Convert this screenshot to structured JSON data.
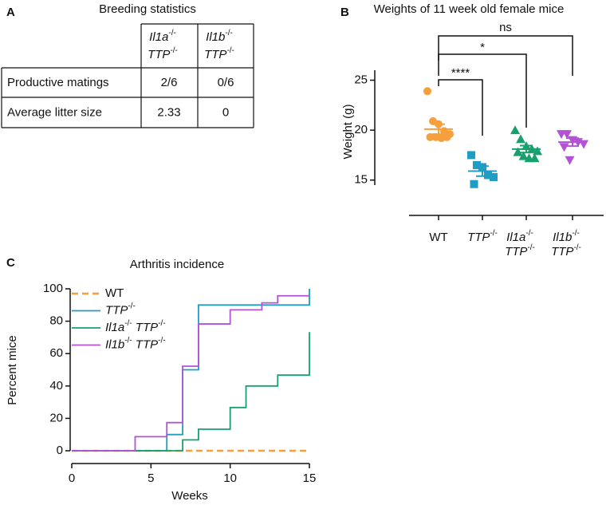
{
  "table": {
    "panel": "A",
    "title": "Breeding statistics",
    "columns": [
      "Il1a-/- TTP-/-",
      "Il1b-/- TTP-/-"
    ],
    "rows": [
      {
        "label": "Productive matings",
        "cells": [
          "2/6",
          "0/6"
        ]
      },
      {
        "label": "Average litter size",
        "cells": [
          "2.33",
          "0"
        ]
      }
    ]
  },
  "chart_data": [
    {
      "type": "dot",
      "panel": "B",
      "title": "Weights of 11 week old female mice",
      "y_label": "Weight (g)",
      "categories": [
        "WT",
        "TTP-/-",
        "Il1a-/- TTP-/-",
        "Il1b-/- TTP-/-"
      ],
      "colors": [
        "#f5a03c",
        "#1f9dc4",
        "#17a06e",
        "#b452d6"
      ],
      "markers": [
        "circle",
        "square",
        "triangle-up",
        "triangle-down"
      ],
      "values": [
        [
          23.9,
          20.9,
          20.6,
          19.9,
          19.6,
          19.3,
          19.3,
          19.2,
          19.3
        ],
        [
          17.5,
          16.5,
          16.3,
          15.5,
          15.3,
          14.6
        ],
        [
          20.0,
          19.1,
          18.4,
          18.1,
          17.9,
          17.8,
          17.4,
          17.2,
          17.2
        ],
        [
          19.6,
          19.6,
          19.0,
          18.8,
          18.6,
          18.3,
          17.0
        ]
      ],
      "means": [
        20.1,
        15.9,
        18.1,
        18.8
      ],
      "sems": [
        0.5,
        0.5,
        0.35,
        0.4
      ],
      "annotations": [
        "****",
        "*",
        "ns"
      ],
      "ylim": [
        14.5,
        26
      ],
      "yticks": [
        15,
        20,
        25
      ]
    },
    {
      "type": "step",
      "panel": "C",
      "title": "Arthritis incidence",
      "x_label": "Weeks",
      "y_label": "Percent mice",
      "series": [
        {
          "name": "WT",
          "color": "#f5a03c",
          "dashed": true,
          "x": [
            0,
            15
          ],
          "values": [
            0,
            0
          ]
        },
        {
          "name": "TTP-/-",
          "color": "#1f9dc4",
          "x": [
            0,
            6,
            7,
            8,
            15
          ],
          "values": [
            0,
            10,
            50,
            90,
            100
          ]
        },
        {
          "name": "Il1a-/- TTP-/-",
          "color": "#17a06e",
          "x": [
            0,
            7,
            8,
            10,
            11,
            13,
            15
          ],
          "values": [
            0,
            6.7,
            13.3,
            26.7,
            40,
            46.7,
            73.3
          ]
        },
        {
          "name": "Il1b-/- TTP-/-",
          "color": "#b452d6",
          "x": [
            0,
            4,
            6,
            7,
            8,
            10,
            12,
            13,
            15
          ],
          "values": [
            0,
            8.7,
            17.4,
            52.2,
            78.3,
            87,
            91.3,
            95.7,
            95.7
          ]
        }
      ],
      "xlim": [
        0,
        15
      ],
      "xticks": [
        0,
        5,
        10,
        15
      ],
      "ylim": [
        0,
        100
      ],
      "yticks": [
        0,
        20,
        40,
        60,
        80,
        100
      ]
    }
  ]
}
